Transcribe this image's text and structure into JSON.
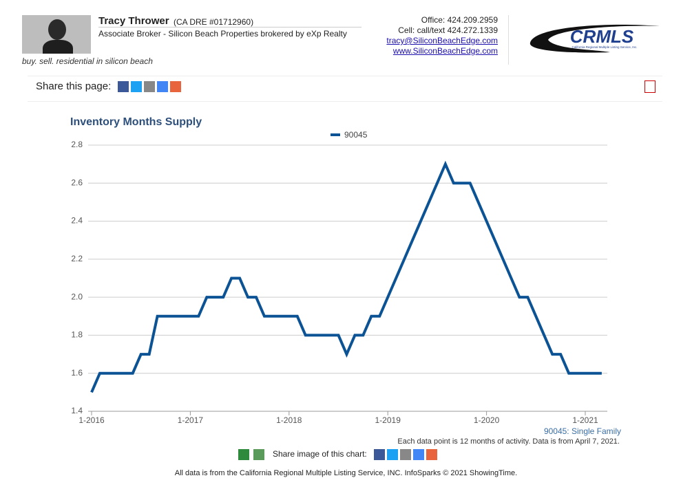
{
  "header": {
    "name": "Tracy Thrower",
    "license": "(CA DRE #01712960)",
    "role": "Associate Broker - Silicon Beach Properties brokered by eXp Realty",
    "tagline": "buy. sell. residential in silicon beach",
    "office": "Office: 424.209.2959",
    "cell": "Cell: call/text 424.272.1339",
    "email": "tracy@SiliconBeachEdge.com",
    "website": "www.SiliconBeachEdge.com",
    "logo": "CRMLS",
    "logo_sub": "California Regional Multiple Listing Service, Inc."
  },
  "share": {
    "label": "Share this page:"
  },
  "chart_data": {
    "type": "line",
    "title": "Inventory Months Supply",
    "categories": [
      "1-2016",
      null,
      null,
      null,
      null,
      null,
      null,
      null,
      null,
      null,
      null,
      null,
      "1-2017",
      null,
      null,
      null,
      null,
      null,
      null,
      null,
      null,
      null,
      null,
      null,
      "1-2018",
      null,
      null,
      null,
      null,
      null,
      null,
      null,
      null,
      null,
      null,
      null,
      "1-2019",
      null,
      null,
      null,
      null,
      null,
      null,
      null,
      null,
      null,
      null,
      null,
      "1-2020",
      null,
      null,
      null,
      null,
      null,
      null,
      null,
      null,
      null,
      null,
      null,
      "1-2021",
      null,
      null
    ],
    "series": [
      {
        "name": "90045",
        "color": "#0b5394",
        "values": [
          1.5,
          1.6,
          1.6,
          1.6,
          1.6,
          1.6,
          1.7,
          1.7,
          1.9,
          1.9,
          1.9,
          1.9,
          1.9,
          1.9,
          2.0,
          2.0,
          2.0,
          2.1,
          2.1,
          2.0,
          2.0,
          1.9,
          1.9,
          1.9,
          1.9,
          1.9,
          1.8,
          1.8,
          1.8,
          1.8,
          1.8,
          1.7,
          1.8,
          1.8,
          1.9,
          1.9,
          2.0,
          2.1,
          2.2,
          2.3,
          2.4,
          2.5,
          2.6,
          2.7,
          2.6,
          2.6,
          2.6,
          2.5,
          2.4,
          2.3,
          2.2,
          2.1,
          2.0,
          2.0,
          1.9,
          1.8,
          1.7,
          1.7,
          1.6,
          1.6,
          1.6,
          1.6,
          1.6
        ]
      }
    ],
    "ylim": [
      1.4,
      2.8
    ],
    "yticks": [
      1.4,
      1.6,
      1.8,
      {
        "value": 2,
        "label": "2.0"
      },
      2.2,
      2.4,
      2.6,
      2.8
    ],
    "grid": true,
    "annotation": "90045: Single Family",
    "note": "Each data point is 12 months of activity. Data is from April 7, 2021."
  },
  "chart_share": {
    "label": "Share image of this chart:"
  },
  "footer": "All data is from the California Regional Multiple Listing Service, INC. InfoSparks © 2021 ShowingTime."
}
